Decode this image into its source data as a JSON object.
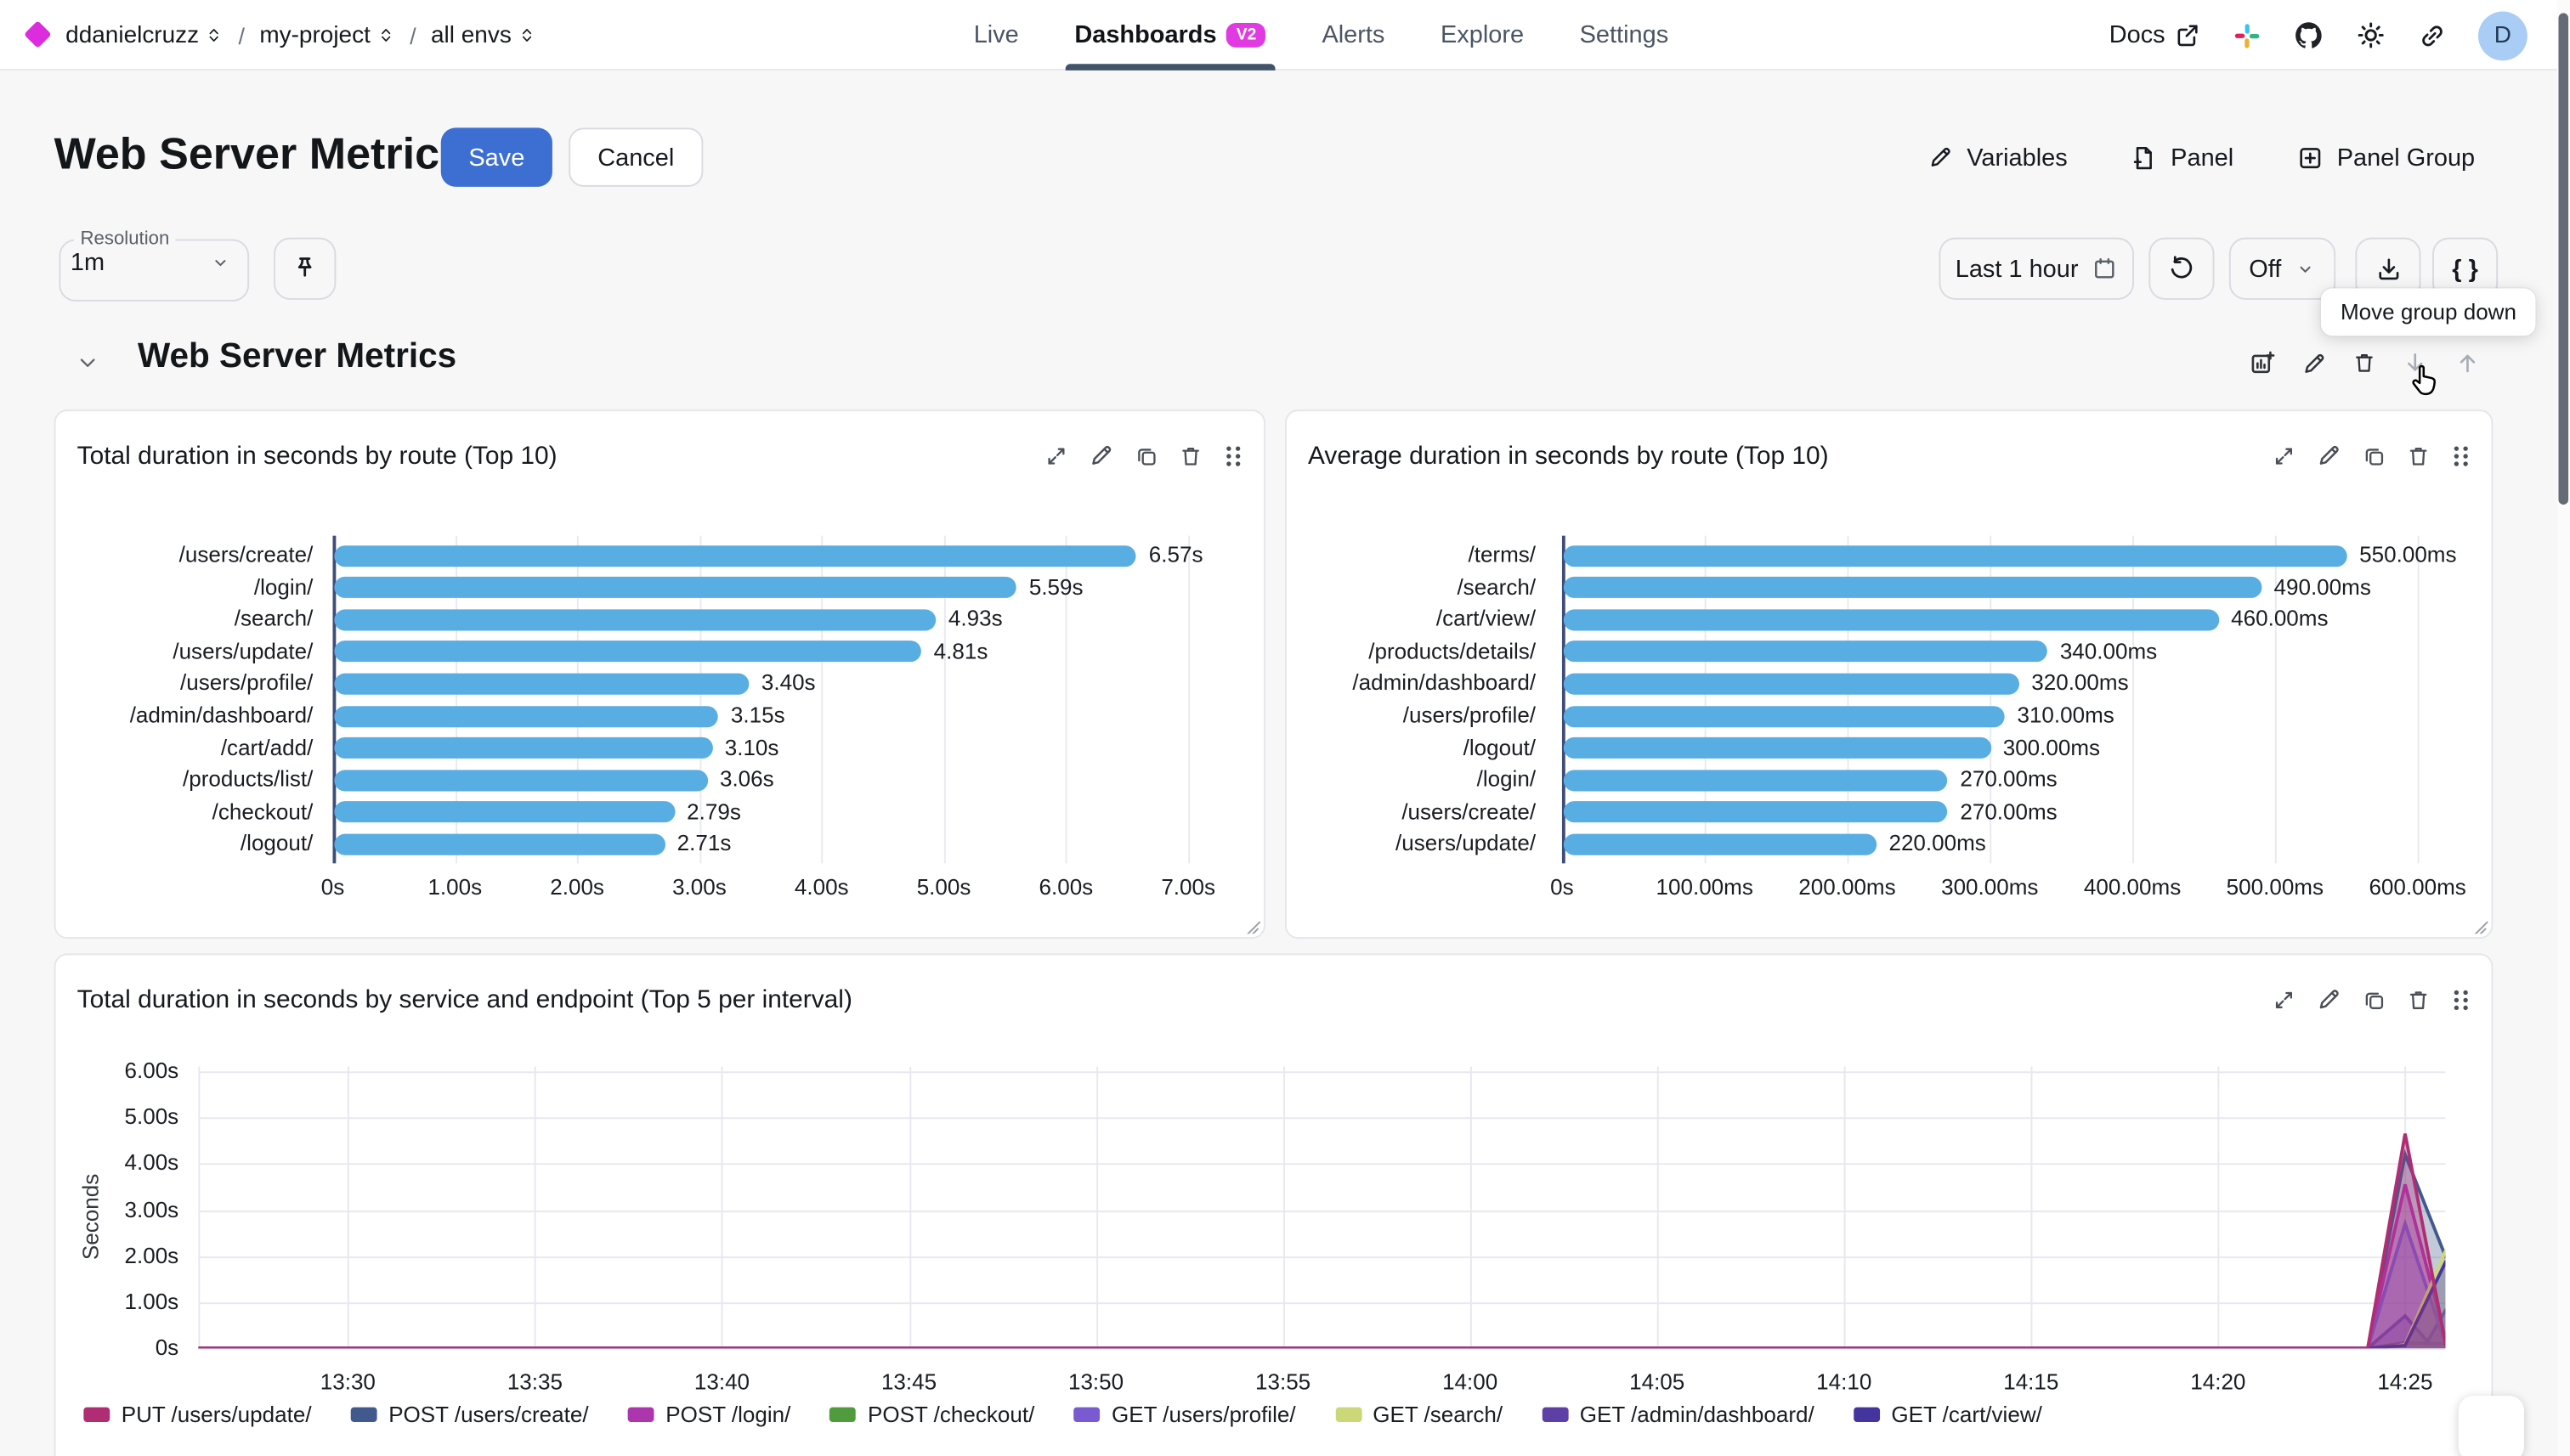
{
  "header": {
    "breadcrumb": {
      "org": "ddanielcruzz",
      "project": "my-project",
      "env": "all envs",
      "separator": "/"
    },
    "nav": [
      {
        "label": "Live",
        "active": false
      },
      {
        "label": "Dashboards",
        "active": true,
        "badge": "V2"
      },
      {
        "label": "Alerts",
        "active": false
      },
      {
        "label": "Explore",
        "active": false
      },
      {
        "label": "Settings",
        "active": false
      }
    ],
    "docs_label": "Docs",
    "avatar_initial": "D"
  },
  "toolbar": {
    "title": "Web Server Metrics",
    "save_label": "Save",
    "cancel_label": "Cancel",
    "actions": [
      {
        "label": "Variables",
        "icon": "pencil"
      },
      {
        "label": "Panel",
        "icon": "filePlus"
      },
      {
        "label": "Panel Group",
        "icon": "plusSquare"
      }
    ]
  },
  "controls": {
    "resolution_label": "Resolution",
    "resolution_value": "1m",
    "time_range": "Last 1 hour",
    "refresh_value": "Off",
    "braces_label": "{ }"
  },
  "tooltip": {
    "text": "Move group down"
  },
  "group": {
    "title": "Web Server Metrics"
  },
  "panels": [
    {
      "title": "Total duration in seconds by route (Top 10)"
    },
    {
      "title": "Average duration in seconds by route (Top 10)"
    },
    {
      "title": "Total duration in seconds by service and endpoint (Top 5 per interval)"
    }
  ],
  "chart_data": [
    {
      "type": "bar",
      "orientation": "horizontal",
      "title": "Total duration in seconds by route (Top 10)",
      "unit": "s",
      "categories": [
        "/users/create/",
        "/login/",
        "/search/",
        "/users/update/",
        "/users/profile/",
        "/admin/dashboard/",
        "/cart/add/",
        "/products/list/",
        "/checkout/",
        "/logout/"
      ],
      "values": [
        6.57,
        5.59,
        4.93,
        4.81,
        3.4,
        3.15,
        3.1,
        3.06,
        2.79,
        2.71
      ],
      "value_labels": [
        "6.57s",
        "5.59s",
        "4.93s",
        "4.81s",
        "3.40s",
        "3.15s",
        "3.10s",
        "3.06s",
        "2.79s",
        "2.71s"
      ],
      "xticks": [
        {
          "label": "0s",
          "v": 0
        },
        {
          "label": "1.00s",
          "v": 1
        },
        {
          "label": "2.00s",
          "v": 2
        },
        {
          "label": "3.00s",
          "v": 3
        },
        {
          "label": "4.00s",
          "v": 4
        },
        {
          "label": "5.00s",
          "v": 5
        },
        {
          "label": "6.00s",
          "v": 6
        },
        {
          "label": "7.00s",
          "v": 7
        }
      ],
      "xlim": [
        0,
        7.6
      ],
      "bar_color": "#58ade2"
    },
    {
      "type": "bar",
      "orientation": "horizontal",
      "title": "Average duration in seconds by route (Top 10)",
      "unit": "ms",
      "categories": [
        "/terms/",
        "/search/",
        "/cart/view/",
        "/products/details/",
        "/admin/dashboard/",
        "/users/profile/",
        "/logout/",
        "/login/",
        "/users/create/",
        "/users/update/"
      ],
      "values": [
        550,
        490,
        460,
        340,
        320,
        310,
        300,
        270,
        270,
        220
      ],
      "value_labels": [
        "550.00ms",
        "490.00ms",
        "460.00ms",
        "340.00ms",
        "320.00ms",
        "310.00ms",
        "300.00ms",
        "270.00ms",
        "270.00ms",
        "220.00ms"
      ],
      "xticks": [
        {
          "label": "0s",
          "v": 0
        },
        {
          "label": "100.00ms",
          "v": 100
        },
        {
          "label": "200.00ms",
          "v": 200
        },
        {
          "label": "300.00ms",
          "v": 300
        },
        {
          "label": "400.00ms",
          "v": 400
        },
        {
          "label": "500.00ms",
          "v": 500
        },
        {
          "label": "600.00ms",
          "v": 600
        }
      ],
      "xlim": [
        0,
        655
      ],
      "bar_color": "#58ade2"
    },
    {
      "type": "area",
      "title": "Total duration in seconds by service and endpoint (Top 5 per interval)",
      "ylabel": "Seconds",
      "yticks": [
        {
          "label": "0s",
          "v": 0
        },
        {
          "label": "1.00s",
          "v": 1
        },
        {
          "label": "2.00s",
          "v": 2
        },
        {
          "label": "3.00s",
          "v": 3
        },
        {
          "label": "4.00s",
          "v": 4
        },
        {
          "label": "5.00s",
          "v": 5
        },
        {
          "label": "6.00s",
          "v": 6
        }
      ],
      "xticks": [
        {
          "label": "13:30",
          "m": 0
        },
        {
          "label": "13:35",
          "m": 5
        },
        {
          "label": "13:40",
          "m": 10
        },
        {
          "label": "13:45",
          "m": 15
        },
        {
          "label": "13:50",
          "m": 20
        },
        {
          "label": "13:55",
          "m": 25
        },
        {
          "label": "14:00",
          "m": 30
        },
        {
          "label": "14:05",
          "m": 35
        },
        {
          "label": "14:10",
          "m": 40
        },
        {
          "label": "14:15",
          "m": 45
        },
        {
          "label": "14:20",
          "m": 50
        },
        {
          "label": "14:25",
          "m": 55
        }
      ],
      "xlim_minutes": [
        -4,
        56.1
      ],
      "ylim": [
        0,
        6.1
      ],
      "series": [
        {
          "name": "POST /checkout/",
          "color": "#4f9b3d",
          "points": [
            [
              -4,
              0
            ],
            [
              54,
              0
            ],
            [
              55,
              0.12
            ],
            [
              56.1,
              0.1
            ]
          ]
        },
        {
          "name": "GET /admin/dashboard/",
          "color": "#5d3fa6",
          "points": [
            [
              -4,
              0
            ],
            [
              54,
              0
            ],
            [
              55,
              0.7
            ],
            [
              55.6,
              0.15
            ],
            [
              56.1,
              0.85
            ]
          ]
        },
        {
          "name": "POST /users/create/",
          "color": "#41598c",
          "points": [
            [
              -4,
              0
            ],
            [
              54,
              0
            ],
            [
              55,
              4.2
            ],
            [
              56.1,
              1.95
            ]
          ]
        },
        {
          "name": "POST /login/",
          "color": "#ad35ad",
          "points": [
            [
              -4,
              0
            ],
            [
              54,
              0
            ],
            [
              55,
              3.55
            ],
            [
              56.1,
              0.15
            ]
          ]
        },
        {
          "name": "GET /users/profile/",
          "color": "#7a5ad0",
          "points": [
            [
              -4,
              0
            ],
            [
              54,
              0
            ],
            [
              55,
              2.7
            ],
            [
              56.1,
              0.05
            ]
          ]
        },
        {
          "name": "GET /search/",
          "color": "#ccd878",
          "points": [
            [
              -4,
              0
            ],
            [
              54.4,
              0
            ],
            [
              55,
              0.08
            ],
            [
              56.1,
              2.15
            ]
          ]
        },
        {
          "name": "GET /cart/view/",
          "color": "#44349e",
          "points": [
            [
              -4,
              0
            ],
            [
              54,
              0
            ],
            [
              55,
              0.06
            ],
            [
              56.1,
              1.9
            ]
          ]
        },
        {
          "name": "PUT /users/update/",
          "color": "#b02d73",
          "points": [
            [
              -4,
              0
            ],
            [
              54,
              0
            ],
            [
              55,
              4.65
            ],
            [
              56.1,
              0.02
            ]
          ]
        }
      ],
      "legend": [
        {
          "name": "PUT /users/update/",
          "color": "#b02d73"
        },
        {
          "name": "POST /users/create/",
          "color": "#41598c"
        },
        {
          "name": "POST /login/",
          "color": "#ad35ad"
        },
        {
          "name": "POST /checkout/",
          "color": "#4f9b3d"
        },
        {
          "name": "GET /users/profile/",
          "color": "#7a5ad0"
        },
        {
          "name": "GET /search/",
          "color": "#ccd878"
        },
        {
          "name": "GET /admin/dashboard/",
          "color": "#5d3fa6"
        },
        {
          "name": "GET /cart/view/",
          "color": "#44349e"
        }
      ],
      "legend_position": "bottom"
    }
  ]
}
